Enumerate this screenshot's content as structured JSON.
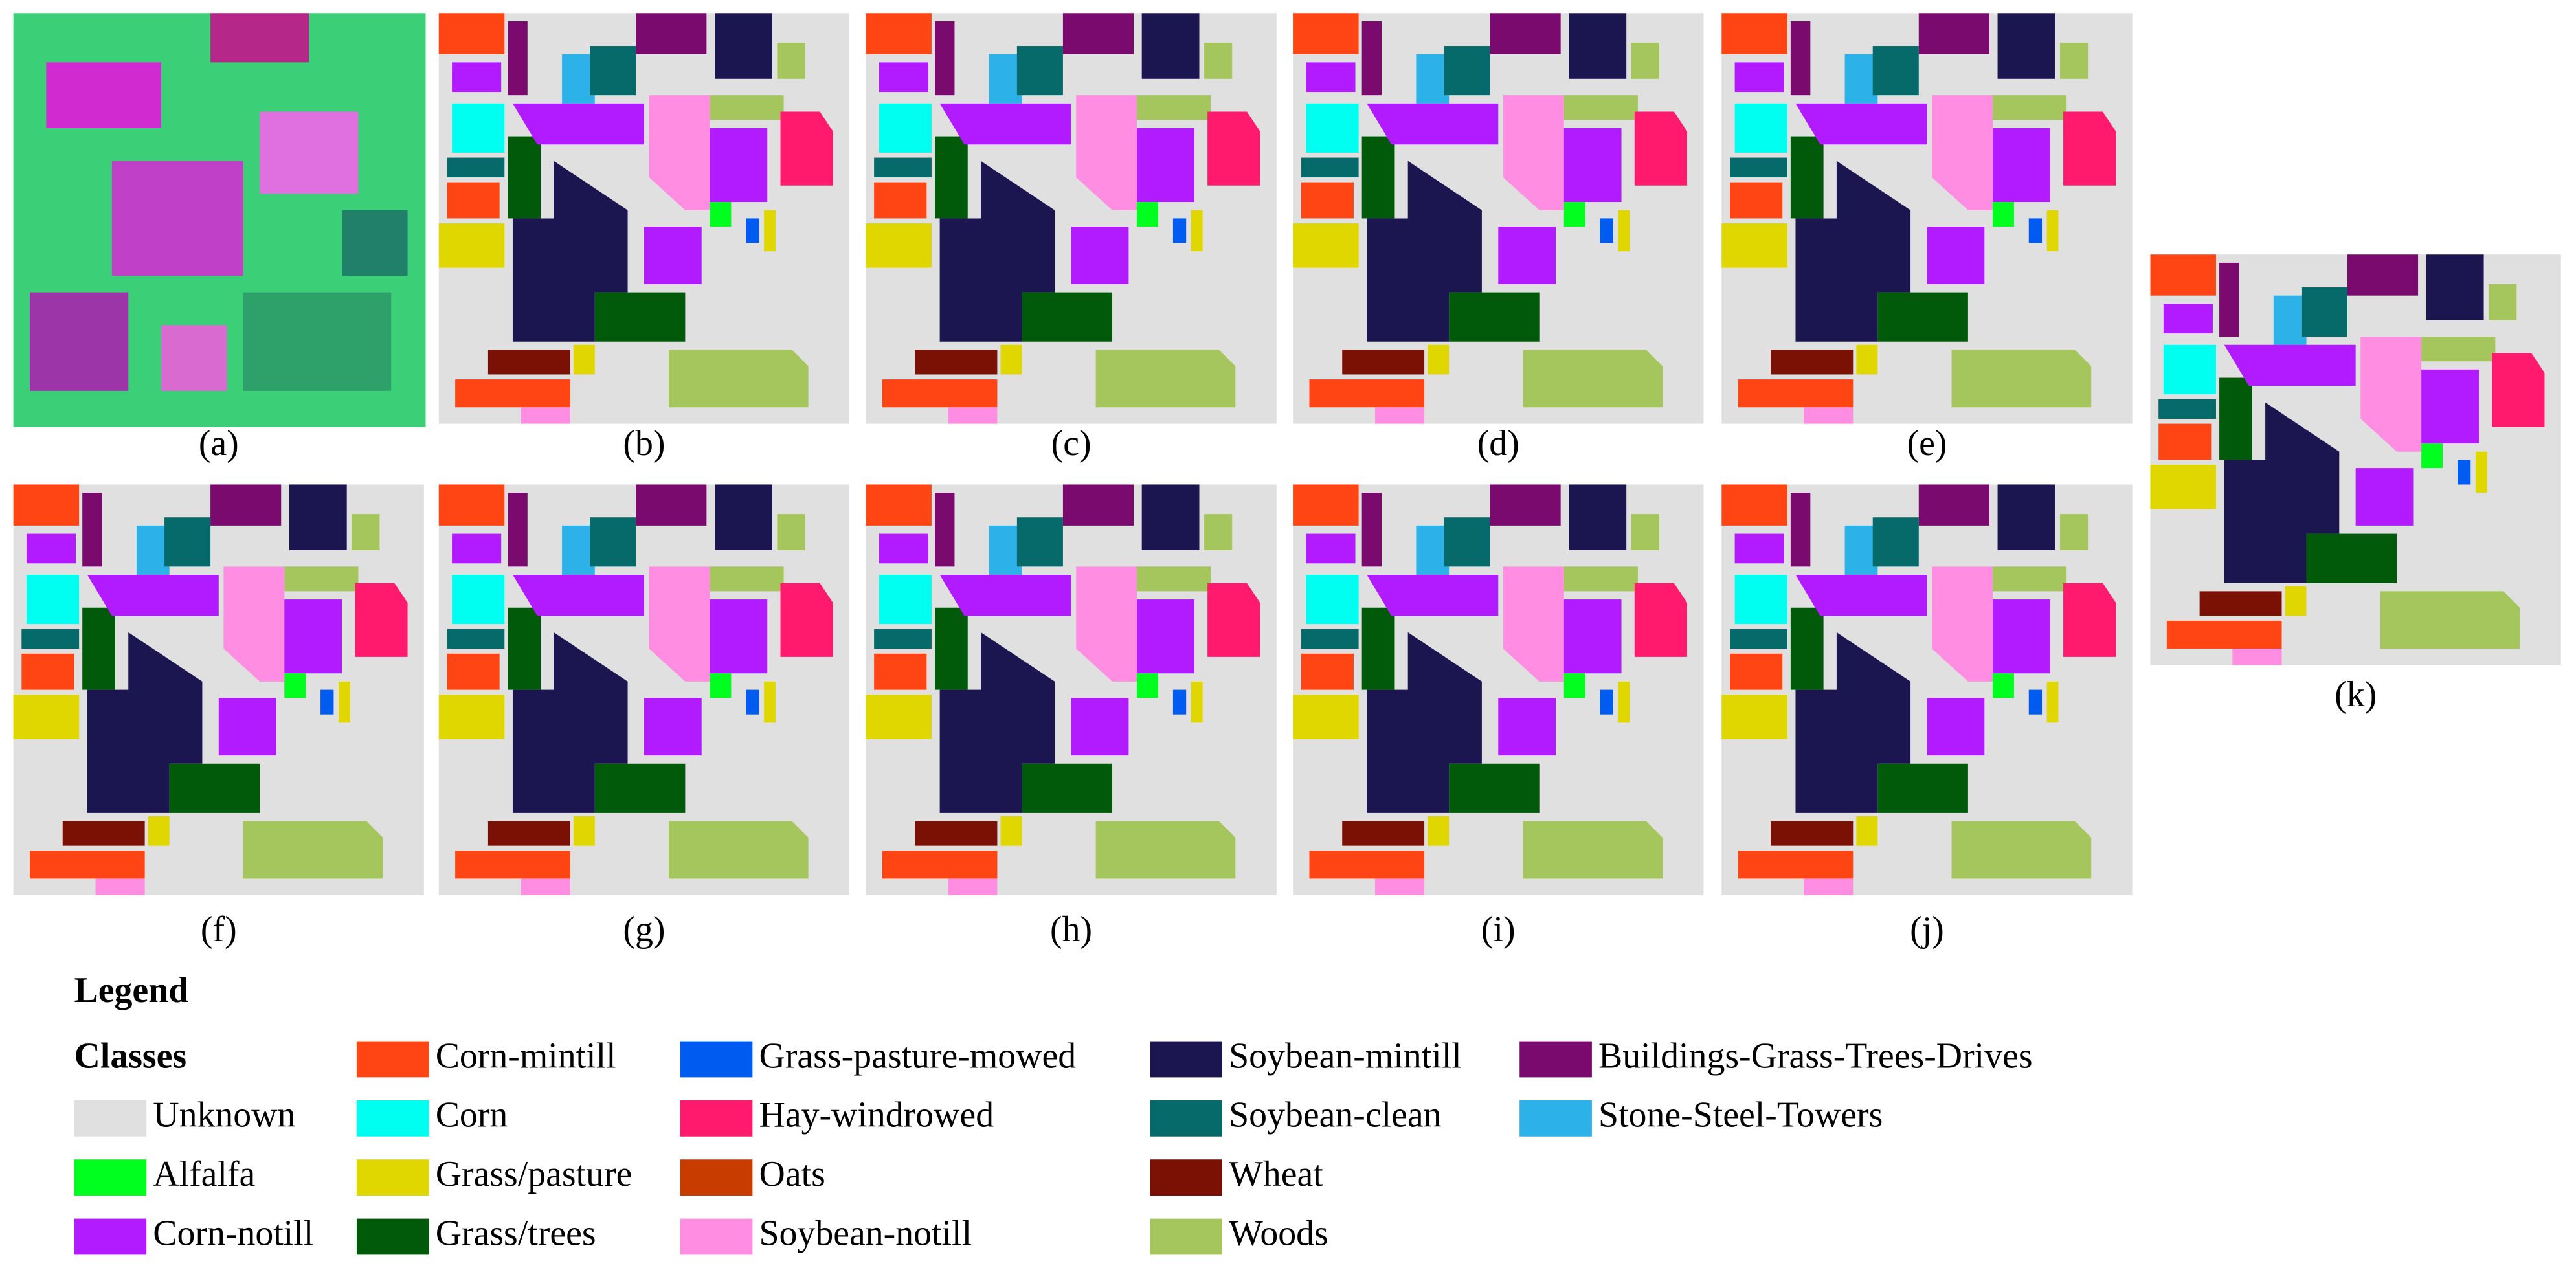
{
  "panels": [
    {
      "label": "(a)"
    },
    {
      "label": "(b)"
    },
    {
      "label": "(c)"
    },
    {
      "label": "(d)"
    },
    {
      "label": "(e)"
    },
    {
      "label": "(f)"
    },
    {
      "label": "(g)"
    },
    {
      "label": "(h)"
    },
    {
      "label": "(i)"
    },
    {
      "label": "(j)"
    },
    {
      "label": "(k)"
    }
  ],
  "legend": {
    "title": "Legend",
    "heading": "Classes",
    "items": [
      {
        "name": "Unknown",
        "color": "#e0e0e0"
      },
      {
        "name": "Alfalfa",
        "color": "#00ff1e"
      },
      {
        "name": "Corn-notill",
        "color": "#b21bff"
      },
      {
        "name": "Corn-mintill",
        "color": "#ff4514"
      },
      {
        "name": "Corn",
        "color": "#00fff0"
      },
      {
        "name": "Grass/pasture",
        "color": "#e0d600"
      },
      {
        "name": "Grass/trees",
        "color": "#005a0a"
      },
      {
        "name": "Grass-pasture-mowed",
        "color": "#005cf0"
      },
      {
        "name": "Hay-windrowed",
        "color": "#ff1a6e"
      },
      {
        "name": "Oats",
        "color": "#c83c00"
      },
      {
        "name": "Soybean-notill",
        "color": "#ff8ee2"
      },
      {
        "name": "Soybean-mintill",
        "color": "#1c1650"
      },
      {
        "name": "Soybean-clean",
        "color": "#06696a"
      },
      {
        "name": "Wheat",
        "color": "#7b1005"
      },
      {
        "name": "Woods",
        "color": "#a4c65c"
      },
      {
        "name": "Buildings-Grass-Trees-Drives",
        "color": "#7a0a6e"
      },
      {
        "name": "Stone-Steel-Towers",
        "color": "#2cb1e8"
      }
    ]
  }
}
